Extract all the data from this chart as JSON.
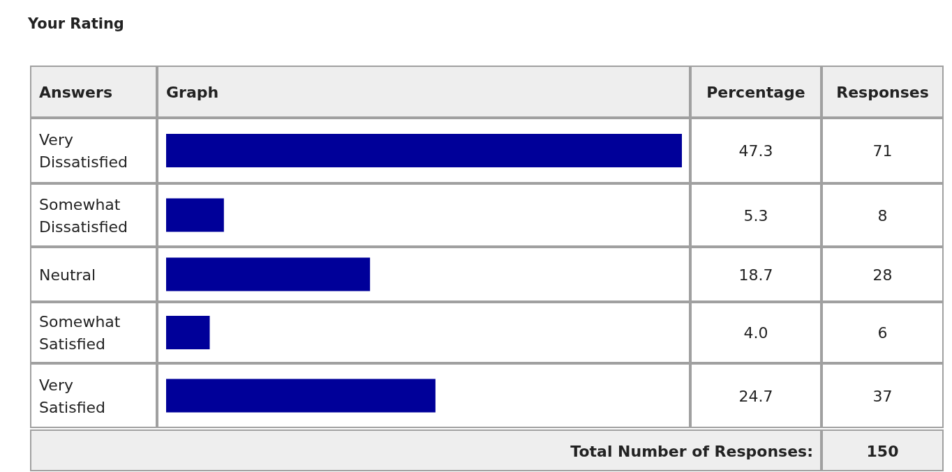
{
  "chart_data": {
    "type": "bar",
    "orientation": "horizontal",
    "title": "Your Rating",
    "categories": [
      "Very Dissatisfied",
      "Somewhat Dissatisfied",
      "Neutral",
      "Somewhat Satisfied",
      "Very Satisfied"
    ],
    "values": [
      47.3,
      5.3,
      18.7,
      4.0,
      24.7
    ],
    "value_labels": [
      "47.3",
      "5.3",
      "18.7",
      "4.0",
      "24.7"
    ],
    "color": "#000099",
    "annotations": [
      "Answers",
      "Graph",
      "Percentage",
      "Responses",
      "71",
      "8",
      "28",
      "6",
      "37",
      "Total Number of Responses:",
      "150"
    ]
  }
}
